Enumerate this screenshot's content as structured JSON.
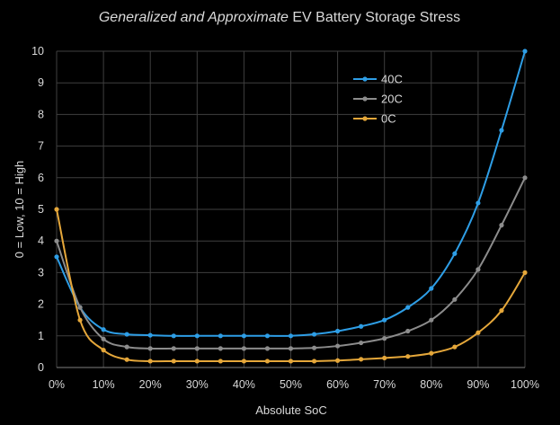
{
  "chart_data": {
    "type": "line",
    "title_italic": "Generalized and Approximate",
    "title_rest": " EV Battery Storage Stress",
    "xlabel": "Absolute SoC",
    "ylabel": "0 = Low, 10 = High",
    "x": [
      0,
      5,
      10,
      15,
      20,
      25,
      30,
      35,
      40,
      45,
      50,
      55,
      60,
      65,
      70,
      75,
      80,
      85,
      90,
      95,
      100
    ],
    "x_tick_labels": [
      "0%",
      "10%",
      "20%",
      "30%",
      "40%",
      "50%",
      "60%",
      "70%",
      "80%",
      "90%",
      "100%"
    ],
    "x_tick_values": [
      0,
      10,
      20,
      30,
      40,
      50,
      60,
      70,
      80,
      90,
      100
    ],
    "y_tick_labels": [
      "0",
      "1",
      "2",
      "3",
      "4",
      "5",
      "6",
      "7",
      "8",
      "9",
      "10"
    ],
    "y_tick_values": [
      0,
      1,
      2,
      3,
      4,
      5,
      6,
      7,
      8,
      9,
      10
    ],
    "xlim": [
      0,
      100
    ],
    "ylim": [
      0,
      10
    ],
    "grid": true,
    "legend_position": "top-right",
    "series": [
      {
        "name": "40C",
        "color": "#2e9ee6",
        "values": [
          3.5,
          1.9,
          1.2,
          1.05,
          1.02,
          1.0,
          1.0,
          1.0,
          1.0,
          1.0,
          1.0,
          1.05,
          1.15,
          1.3,
          1.5,
          1.9,
          2.5,
          3.6,
          5.2,
          7.5,
          10.0
        ]
      },
      {
        "name": "20C",
        "color": "#8c8c8c",
        "values": [
          4.0,
          1.9,
          0.9,
          0.65,
          0.6,
          0.6,
          0.6,
          0.6,
          0.6,
          0.6,
          0.6,
          0.62,
          0.68,
          0.78,
          0.92,
          1.15,
          1.5,
          2.15,
          3.1,
          4.5,
          6.0
        ]
      },
      {
        "name": "0C",
        "color": "#e5a73a",
        "values": [
          5.0,
          1.5,
          0.55,
          0.25,
          0.2,
          0.2,
          0.2,
          0.2,
          0.2,
          0.2,
          0.2,
          0.2,
          0.22,
          0.26,
          0.3,
          0.35,
          0.45,
          0.65,
          1.1,
          1.8,
          3.0
        ]
      }
    ]
  }
}
